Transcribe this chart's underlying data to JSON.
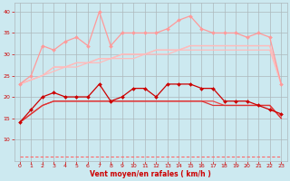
{
  "x": [
    0,
    1,
    2,
    3,
    4,
    5,
    6,
    7,
    8,
    9,
    10,
    11,
    12,
    13,
    14,
    15,
    16,
    17,
    18,
    19,
    20,
    21,
    22,
    23
  ],
  "line_pink_jagged": [
    23,
    25,
    32,
    31,
    33,
    34,
    32,
    40,
    32,
    35,
    35,
    35,
    35,
    36,
    38,
    39,
    36,
    35,
    35,
    35,
    34,
    35,
    34,
    23
  ],
  "line_pink_smooth1": [
    23,
    24,
    25,
    26,
    27,
    27,
    28,
    28,
    29,
    29,
    29,
    30,
    30,
    30,
    31,
    31,
    31,
    31,
    31,
    31,
    31,
    31,
    31,
    23
  ],
  "line_pink_smooth2": [
    23,
    24,
    25,
    27,
    27,
    28,
    28,
    29,
    29,
    30,
    30,
    30,
    31,
    31,
    31,
    32,
    32,
    32,
    32,
    32,
    32,
    32,
    32,
    23
  ],
  "line_pink_smooth3": [
    23,
    24,
    25,
    27,
    27,
    28,
    28,
    29,
    29,
    30,
    30,
    30,
    31,
    31,
    31,
    32,
    32,
    32,
    32,
    32,
    32,
    32,
    32,
    23
  ],
  "line_red_jagged": [
    14,
    17,
    20,
    21,
    20,
    20,
    20,
    23,
    19,
    20,
    22,
    22,
    20,
    23,
    23,
    23,
    22,
    22,
    19,
    19,
    19,
    18,
    17,
    16
  ],
  "line_red_smooth1": [
    14,
    16,
    18,
    19,
    19,
    19,
    19,
    19,
    19,
    19,
    19,
    19,
    19,
    19,
    19,
    19,
    19,
    19,
    18,
    18,
    18,
    18,
    18,
    15
  ],
  "line_red_smooth2": [
    14,
    16,
    18,
    19,
    19,
    19,
    19,
    19,
    19,
    19,
    19,
    19,
    19,
    19,
    19,
    19,
    19,
    18,
    18,
    18,
    18,
    18,
    18,
    15
  ],
  "line_dashed": [
    6,
    6,
    6,
    6,
    6,
    6,
    6,
    6,
    6,
    6,
    6,
    6,
    6,
    6,
    6,
    6,
    6,
    6,
    6,
    6,
    6,
    6,
    6,
    6
  ],
  "bg_color": "#cce9f0",
  "xlabel": "Vent moyen/en rafales ( km/h )",
  "ylim": [
    5,
    42
  ],
  "xlim": [
    -0.5,
    23.5
  ],
  "yticks": [
    10,
    15,
    20,
    25,
    30,
    35,
    40
  ],
  "xticks": [
    0,
    1,
    2,
    3,
    4,
    5,
    6,
    7,
    8,
    9,
    10,
    11,
    12,
    13,
    14,
    15,
    16,
    17,
    18,
    19,
    20,
    21,
    22,
    23
  ]
}
